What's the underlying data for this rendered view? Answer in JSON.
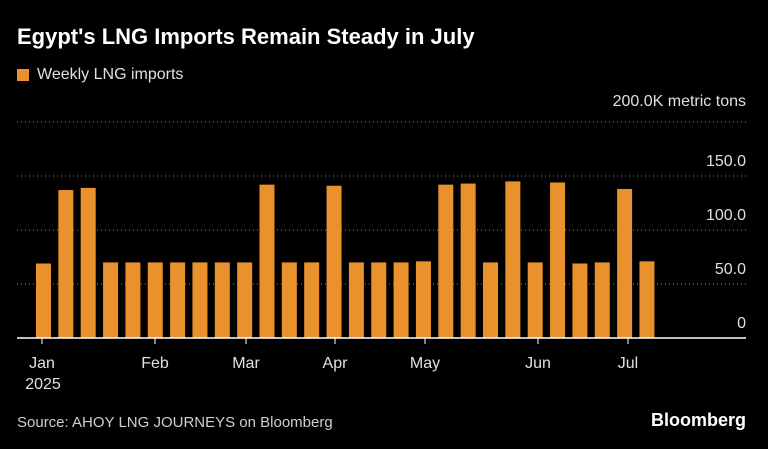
{
  "chart_data": {
    "type": "bar",
    "title": "Egypt's LNG Imports Remain Steady in July",
    "legend": [
      "Weekly LNG imports"
    ],
    "unit_label": "200.0K metric tons",
    "series": [
      {
        "name": "Weekly LNG imports",
        "values": [
          69,
          137,
          139,
          70,
          70,
          70,
          70,
          70,
          70,
          70,
          142,
          70,
          70,
          141,
          70,
          70,
          70,
          71,
          142,
          143,
          70,
          145,
          70,
          144,
          69,
          70,
          138,
          71
        ]
      }
    ],
    "x_tick_labels": [
      "Jan",
      "Feb",
      "Mar",
      "Apr",
      "May",
      "Jun",
      "Jul"
    ],
    "x_year_label": "2025",
    "y_tick_labels": [
      "0",
      "50.0",
      "100.0",
      "150.0"
    ],
    "ylim": [
      0,
      200
    ],
    "grid": true,
    "legend_position": "top-left"
  },
  "colors": {
    "background": "#000000",
    "bar": "#E8912D",
    "grid": "#8a8a8a",
    "axis": "#ffffff",
    "text": "#ffffff"
  },
  "footer": {
    "source": "Source: AHOY LNG JOURNEYS on Bloomberg",
    "brand": "Bloomberg"
  }
}
